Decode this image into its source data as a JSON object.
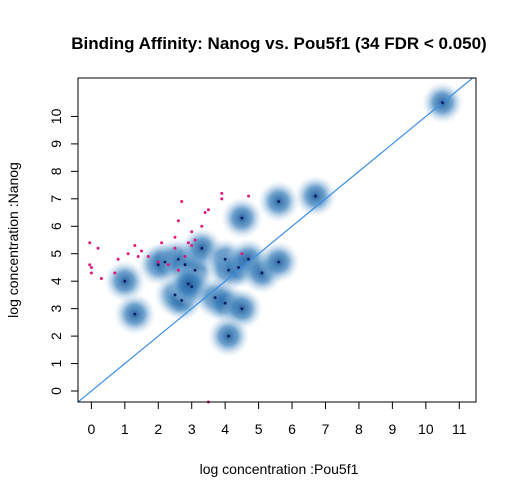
{
  "chart_data": {
    "type": "scatter",
    "title": "Binding Affinity: Nanog vs. Pou5f1 (34 FDR < 0.050)",
    "xlabel": "log concentration :Pou5f1",
    "ylabel": "log concentration :Nanog",
    "xlim": [
      -0.4,
      11.5
    ],
    "ylim": [
      -0.4,
      11.4
    ],
    "xticks": [
      "0",
      "1",
      "2",
      "3",
      "4",
      "5",
      "6",
      "7",
      "8",
      "9",
      "10",
      "11"
    ],
    "yticks": [
      "0",
      "1",
      "2",
      "3",
      "4",
      "5",
      "6",
      "7",
      "8",
      "9",
      "10"
    ],
    "grid": false,
    "reference_line": {
      "slope": 1,
      "intercept": 0,
      "color": "#3a8ee6"
    },
    "colors": {
      "density": "#2c6fad",
      "point": "#0a1a5c",
      "significant": "#e0197d"
    },
    "series": [
      {
        "style": "density",
        "x": [
          10.5,
          6.7,
          5.6,
          4.5,
          1.0,
          1.3,
          2.0,
          2.2,
          2.6,
          2.8,
          3.1,
          3.3,
          2.5,
          2.7,
          3.0,
          4.0,
          4.1,
          4.4,
          4.7,
          5.1,
          5.6,
          2.9,
          3.7,
          4.0,
          4.5,
          4.1
        ],
        "y": [
          10.5,
          7.1,
          6.9,
          6.3,
          4.0,
          2.8,
          4.6,
          4.7,
          4.8,
          4.6,
          4.4,
          5.2,
          3.5,
          3.3,
          3.8,
          4.8,
          4.4,
          4.5,
          4.8,
          4.3,
          4.7,
          3.9,
          3.4,
          3.2,
          3.0,
          2.0
        ]
      },
      {
        "style": "significant",
        "x": [
          -0.05,
          -0.05,
          0.0,
          0.0,
          0.2,
          0.3,
          0.7,
          0.8,
          1.1,
          1.3,
          1.4,
          1.5,
          1.7,
          2.0,
          2.1,
          2.3,
          2.5,
          2.5,
          2.6,
          2.7,
          2.8,
          2.9,
          3.0,
          3.0,
          3.1,
          3.3,
          3.4,
          3.5,
          3.9,
          3.9,
          4.5,
          4.7,
          2.6,
          3.5
        ],
        "y": [
          5.4,
          4.6,
          4.5,
          4.3,
          5.2,
          4.1,
          4.3,
          4.8,
          5.0,
          5.3,
          4.9,
          5.1,
          4.9,
          4.7,
          5.4,
          4.6,
          5.2,
          5.6,
          6.2,
          6.9,
          4.9,
          5.4,
          5.3,
          5.8,
          5.5,
          6.0,
          6.5,
          6.6,
          7.0,
          7.2,
          5.0,
          7.1,
          4.4,
          -0.4
        ]
      }
    ]
  }
}
